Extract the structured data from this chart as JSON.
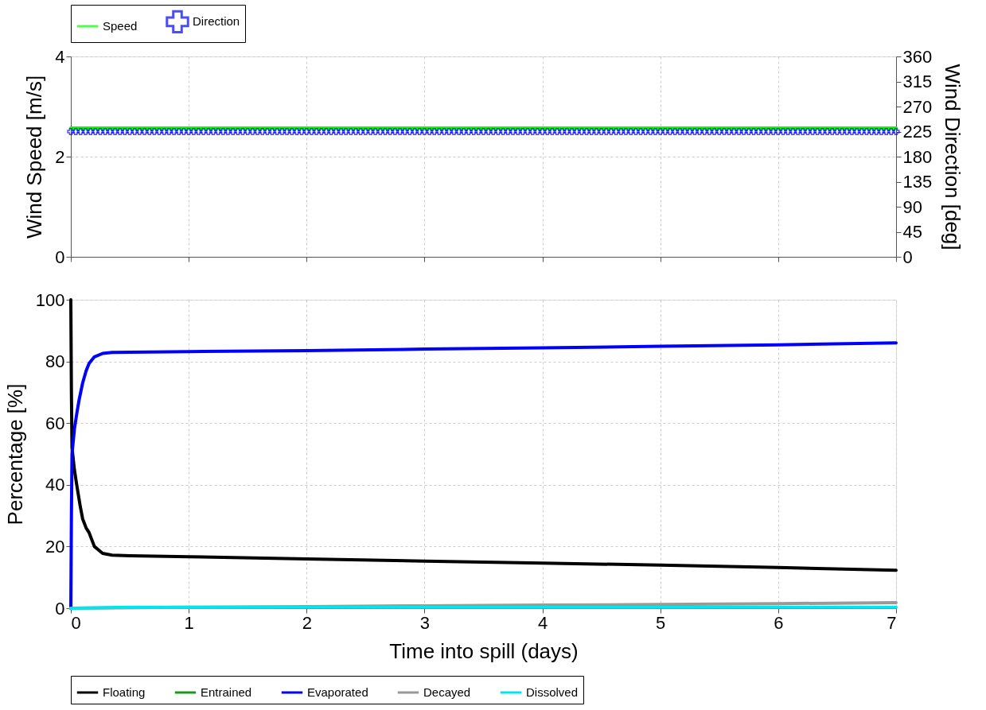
{
  "chart_data": [
    {
      "type": "line",
      "ylabel": "Wind Speed [m/s]",
      "y2label": "Wind Direction [deg]",
      "xlim": [
        0,
        7
      ],
      "xticks": [
        0,
        1,
        2,
        3,
        4,
        5,
        6,
        7
      ],
      "ylim": [
        0,
        4
      ],
      "yticks": [
        0,
        2,
        4
      ],
      "y2lim": [
        0,
        360
      ],
      "y2ticks": [
        0,
        45,
        90,
        135,
        180,
        225,
        270,
        315,
        360
      ],
      "grid": true,
      "legend": "top",
      "tick_labels": "y",
      "series": [
        {
          "name": "Speed",
          "color": "#00ff00",
          "x": [
            0,
            7
          ],
          "values": [
            2.57,
            2.57
          ]
        },
        {
          "name": "Direction",
          "color": "#0000ff",
          "type": "scatter",
          "marker": "cross",
          "axis": "y2",
          "x": [
            0,
            0.042,
            0.083,
            0.125,
            0.167,
            0.208,
            0.25,
            0.292,
            0.333,
            0.375,
            0.417,
            0.458,
            0.5,
            0.542,
            0.583,
            0.625,
            0.667,
            0.708,
            0.75,
            0.792,
            0.833,
            0.875,
            0.917,
            0.958,
            1,
            1.042,
            1.083,
            1.125,
            1.167,
            1.208,
            1.25,
            1.292,
            1.333,
            1.375,
            1.417,
            1.458,
            1.5,
            1.542,
            1.583,
            1.625,
            1.667,
            1.708,
            1.75,
            1.792,
            1.833,
            1.875,
            1.917,
            1.958,
            2,
            2.042,
            2.083,
            2.125,
            2.167,
            2.208,
            2.25,
            2.292,
            2.333,
            2.375,
            2.417,
            2.458,
            2.5,
            2.542,
            2.583,
            2.625,
            2.667,
            2.708,
            2.75,
            2.792,
            2.833,
            2.875,
            2.917,
            2.958,
            3,
            3.042,
            3.083,
            3.125,
            3.167,
            3.208,
            3.25,
            3.292,
            3.333,
            3.375,
            3.417,
            3.458,
            3.5,
            3.542,
            3.583,
            3.625,
            3.667,
            3.708,
            3.75,
            3.792,
            3.833,
            3.875,
            3.917,
            3.958,
            4,
            4.042,
            4.083,
            4.125,
            4.167,
            4.208,
            4.25,
            4.292,
            4.333,
            4.375,
            4.417,
            4.458,
            4.5,
            4.542,
            4.583,
            4.625,
            4.667,
            4.708,
            4.75,
            4.792,
            4.833,
            4.875,
            4.917,
            4.958,
            5,
            5.042,
            5.083,
            5.125,
            5.167,
            5.208,
            5.25,
            5.292,
            5.333,
            5.375,
            5.417,
            5.458,
            5.5,
            5.542,
            5.583,
            5.625,
            5.667,
            5.708,
            5.75,
            5.792,
            5.833,
            5.875,
            5.917,
            5.958,
            6,
            6.042,
            6.083,
            6.125,
            6.167,
            6.208,
            6.25,
            6.292,
            6.333,
            6.375,
            6.417,
            6.458,
            6.5,
            6.542,
            6.583,
            6.625,
            6.667,
            6.708,
            6.75,
            6.792,
            6.833,
            6.875,
            6.917,
            6.958,
            7
          ],
          "values": [
            225,
            225,
            225,
            225,
            225,
            225,
            225,
            225,
            225,
            225,
            225,
            225,
            225,
            225,
            225,
            225,
            225,
            225,
            225,
            225,
            225,
            225,
            225,
            225,
            225,
            225,
            225,
            225,
            225,
            225,
            225,
            225,
            225,
            225,
            225,
            225,
            225,
            225,
            225,
            225,
            225,
            225,
            225,
            225,
            225,
            225,
            225,
            225,
            225,
            225,
            225,
            225,
            225,
            225,
            225,
            225,
            225,
            225,
            225,
            225,
            225,
            225,
            225,
            225,
            225,
            225,
            225,
            225,
            225,
            225,
            225,
            225,
            225,
            225,
            225,
            225,
            225,
            225,
            225,
            225,
            225,
            225,
            225,
            225,
            225,
            225,
            225,
            225,
            225,
            225,
            225,
            225,
            225,
            225,
            225,
            225,
            225,
            225,
            225,
            225,
            225,
            225,
            225,
            225,
            225,
            225,
            225,
            225,
            225,
            225,
            225,
            225,
            225,
            225,
            225,
            225,
            225,
            225,
            225,
            225,
            225,
            225,
            225,
            225,
            225,
            225,
            225,
            225,
            225,
            225,
            225,
            225,
            225,
            225,
            225,
            225,
            225,
            225,
            225,
            225,
            225,
            225,
            225,
            225,
            225,
            225,
            225,
            225,
            225,
            225,
            225,
            225,
            225,
            225,
            225,
            225,
            225,
            225,
            225,
            225,
            225,
            225,
            225,
            225,
            225,
            225,
            225,
            225,
            225
          ]
        }
      ]
    },
    {
      "type": "line",
      "xlabel": "Time into spill (days)",
      "ylabel": "Percentage  [%]",
      "xlim": [
        0,
        7
      ],
      "xticks": [
        0,
        1,
        2,
        3,
        4,
        5,
        6,
        7
      ],
      "ylim": [
        0,
        100
      ],
      "yticks": [
        0,
        20,
        40,
        60,
        80,
        100
      ],
      "grid": true,
      "legend": "bottom",
      "line_style": "solid",
      "series": [
        {
          "name": "Floating",
          "color": "#000000",
          "x": [
            0,
            0.005,
            0.01,
            0.03,
            0.05,
            0.08,
            0.1,
            0.13,
            0.155,
            0.2,
            0.27,
            0.35,
            0.5,
            1,
            2,
            3,
            4,
            5,
            6,
            7
          ],
          "values": [
            100,
            70,
            52,
            45,
            40,
            33,
            29,
            26,
            24.5,
            20,
            17.8,
            17.2,
            17,
            16.7,
            16,
            15.3,
            14.6,
            14,
            13.2,
            12.3
          ]
        },
        {
          "name": "Entrained",
          "color": "#1a9a1a"
        },
        {
          "name": "Evaporated",
          "color": "#0000ff",
          "x": [
            0,
            0.005,
            0.01,
            0.03,
            0.05,
            0.07,
            0.1,
            0.13,
            0.155,
            0.2,
            0.27,
            0.35,
            0.5,
            1,
            2,
            3,
            4,
            5,
            6,
            7
          ],
          "values": [
            0,
            30,
            50,
            58,
            63,
            67.5,
            73,
            77,
            79.4,
            81.5,
            82.6,
            82.9,
            83,
            83.2,
            83.5,
            84,
            84.4,
            84.9,
            85.4,
            86
          ]
        },
        {
          "name": "Decayed",
          "color": "#999999",
          "x": [
            0,
            1,
            2,
            3,
            4,
            5,
            6,
            7
          ],
          "values": [
            0,
            0.3,
            0.5,
            0.8,
            1,
            1.2,
            1.5,
            1.8
          ]
        },
        {
          "name": "Dissolved",
          "color": "#00e5ee",
          "x": [
            0,
            0.5,
            7
          ],
          "values": [
            0,
            0.3,
            0.3
          ]
        }
      ]
    }
  ]
}
